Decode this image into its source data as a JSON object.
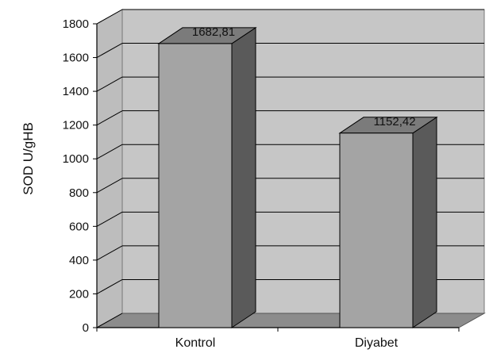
{
  "chart_data": {
    "type": "bar",
    "style": "3d",
    "categories": [
      "Kontrol",
      "Diyabet"
    ],
    "values": [
      1682.81,
      1152.42
    ],
    "data_labels": [
      "1682,81",
      "1152,42"
    ],
    "ylabel": "SOD U/gHB",
    "xlabel": "",
    "title": "",
    "ylim": [
      0,
      1800
    ],
    "yticks": [
      0,
      200,
      400,
      600,
      800,
      1000,
      1200,
      1400,
      1600,
      1800
    ],
    "grid": true,
    "legend": "none",
    "colors": {
      "wall": "#c6c6c6",
      "floor": "#8c8c8c",
      "bar_front": "#a4a4a4",
      "bar_top": "#7b7b7b",
      "bar_side": "#5a5a5a",
      "edge": "#000000"
    }
  }
}
